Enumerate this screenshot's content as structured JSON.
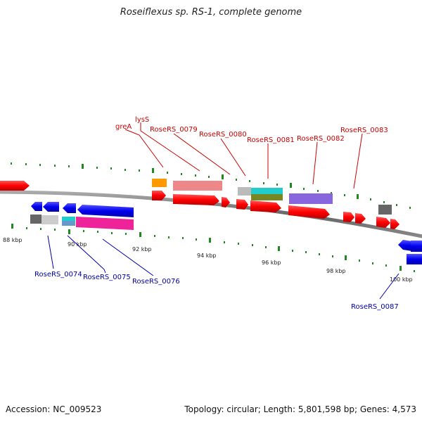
{
  "title": "Roseiflexus sp. RS-1, complete genome",
  "footer": {
    "accession": "Accession: NC_009523",
    "summary": "Topology: circular; Length: 5,801,598 bp; Genes: 4,573"
  },
  "colors": {
    "forward": "#ff0000",
    "reverse": "#0000ee",
    "backbone": "#777777",
    "tick": "#228822",
    "label_forward": "#cc0000",
    "label_reverse": "#0000aa"
  },
  "tick_labels": [
    "88 kbp",
    "90 kbp",
    "92 kbp",
    "94 kbp",
    "96 kbp",
    "98 kbp",
    "100 kbp"
  ],
  "gene_labels": {
    "forward": [
      "greA",
      "lysS",
      "RoseRS_0079",
      "RoseRS_0080",
      "RoseRS_0081",
      "RoseRS_0082",
      "RoseRS_0083"
    ],
    "reverse": [
      "RoseRS_0074",
      "RoseRS_0075",
      "RoseRS_0076",
      "RoseRS_0087"
    ]
  }
}
